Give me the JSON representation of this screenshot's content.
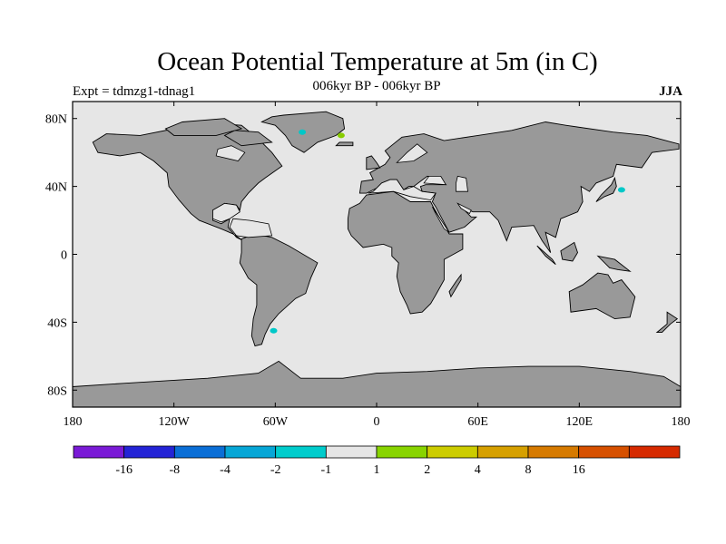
{
  "figure": {
    "title": "Ocean Potential Temperature at 5m (in C)",
    "subtitle": "006kyr BP - 006kyr BP",
    "left_label": "Expt = tdmzg1-tdnag1",
    "right_label": "JJA"
  },
  "map": {
    "ocean_color": "#e6e6e6",
    "land_color": "#999999",
    "coast_color": "#000000",
    "lat_ticks": [
      "80N",
      "40N",
      "0",
      "40S",
      "80S"
    ],
    "lon_ticks": [
      "180",
      "120W",
      "60W",
      "0",
      "60E",
      "120E",
      "180"
    ],
    "anomalies": [
      {
        "name": "greenland-west-cool",
        "lon": -44,
        "lat": 72,
        "color": "#00c8c8",
        "value_bin": "-2 to -1"
      },
      {
        "name": "greenland-east-warm",
        "lon": -21,
        "lat": 70,
        "color": "#88cc00",
        "value_bin": "1 to 2"
      },
      {
        "name": "japan-cool",
        "lon": 145,
        "lat": 38,
        "color": "#00c8c8",
        "value_bin": "-2 to -1"
      },
      {
        "name": "patagonia-cool",
        "lon": -61,
        "lat": -45,
        "color": "#00c8c8",
        "value_bin": "-2 to -1"
      }
    ]
  },
  "colorbar": {
    "colors": [
      "#7a1ad6",
      "#2424d6",
      "#0a6ed6",
      "#06a6d6",
      "#00cccc",
      "#e6e6e6",
      "#88d400",
      "#cccc00",
      "#d6a000",
      "#d67a00",
      "#d65000",
      "#d62a00"
    ],
    "labels": [
      "-16",
      "-8",
      "-4",
      "-2",
      "-1",
      "1",
      "2",
      "4",
      "8",
      "16"
    ]
  }
}
